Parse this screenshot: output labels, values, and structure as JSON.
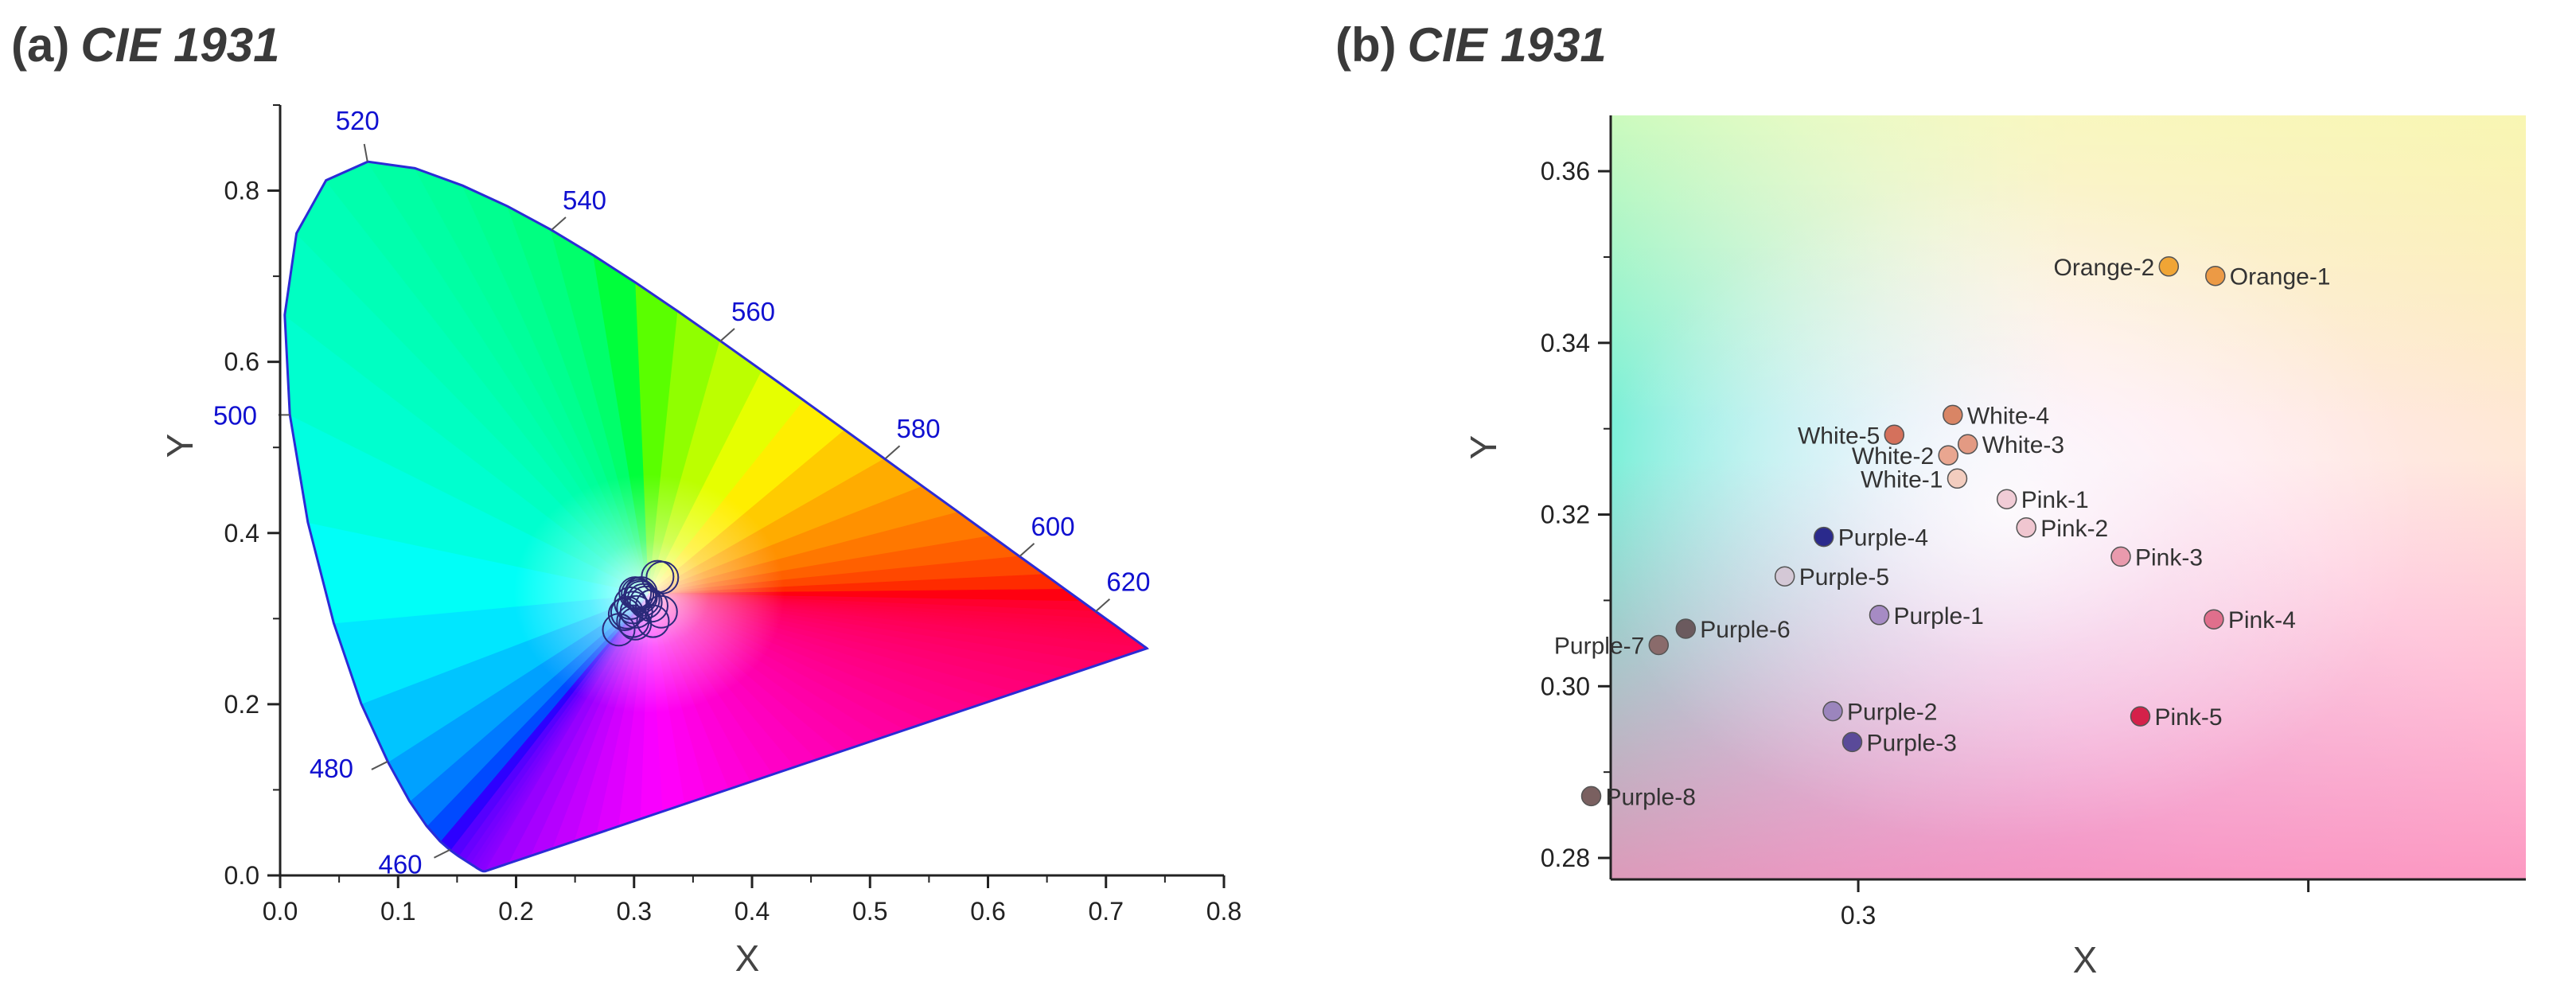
{
  "panels": {
    "a": {
      "letter": "(a)",
      "name": "CIE 1931"
    },
    "b": {
      "letter": "(b)",
      "name": "CIE 1931"
    }
  },
  "chart_data": [
    {
      "type": "scatter",
      "panel": "a",
      "title": "CIE 1931",
      "xlabel": "X",
      "ylabel": "Y",
      "xlim": [
        0.0,
        0.8
      ],
      "ylim": [
        0.0,
        0.9
      ],
      "xticks": [
        "0.0",
        "0.1",
        "0.2",
        "0.3",
        "0.4",
        "0.5",
        "0.6",
        "0.7",
        "0.8"
      ],
      "yticks": [
        "0.0",
        "0.2",
        "0.4",
        "0.6",
        "0.8"
      ],
      "spectral_locus_labels": [
        {
          "label": "460",
          "x": 0.144,
          "y": 0.03
        },
        {
          "label": "480",
          "x": 0.091,
          "y": 0.133
        },
        {
          "label": "500",
          "x": 0.008,
          "y": 0.538
        },
        {
          "label": "520",
          "x": 0.074,
          "y": 0.834
        },
        {
          "label": "540",
          "x": 0.23,
          "y": 0.754
        },
        {
          "label": "560",
          "x": 0.373,
          "y": 0.624
        },
        {
          "label": "580",
          "x": 0.513,
          "y": 0.487
        },
        {
          "label": "600",
          "x": 0.627,
          "y": 0.373
        },
        {
          "label": "620",
          "x": 0.691,
          "y": 0.308
        }
      ],
      "series": [
        {
          "values": [
            [
              0.32,
              0.349
            ],
            [
              0.324,
              0.348
            ],
            [
              0.306,
              0.33
            ],
            [
              0.303,
              0.329
            ],
            [
              0.305,
              0.327
            ],
            [
              0.306,
              0.325
            ],
            [
              0.301,
              0.33
            ],
            [
              0.308,
              0.322
            ],
            [
              0.31,
              0.319
            ],
            [
              0.315,
              0.315
            ],
            [
              0.323,
              0.308
            ],
            [
              0.316,
              0.297
            ],
            [
              0.297,
              0.318
            ],
            [
              0.299,
              0.313
            ],
            [
              0.302,
              0.308
            ],
            [
              0.294,
              0.307
            ],
            [
              0.292,
              0.305
            ],
            [
              0.299,
              0.297
            ],
            [
              0.301,
              0.294
            ],
            [
              0.287,
              0.287
            ]
          ]
        }
      ]
    },
    {
      "type": "scatter",
      "panel": "b",
      "title": "CIE 1931",
      "xlabel": "X",
      "ylabel": "Y",
      "xlim": [
        0.2835,
        0.3445
      ],
      "ylim": [
        0.2775,
        0.3665
      ],
      "xticks": [
        "0.3"
      ],
      "yticks": [
        "0.28",
        "0.30",
        "0.32",
        "0.34",
        "0.36"
      ],
      "points": [
        {
          "name": "Orange-1",
          "x": 0.3238,
          "y": 0.3478,
          "color": "#ec9a45"
        },
        {
          "name": "Orange-2",
          "x": 0.3207,
          "y": 0.3489,
          "color": "#f0a535"
        },
        {
          "name": "White-4",
          "x": 0.3063,
          "y": 0.3316,
          "color": "#d98565"
        },
        {
          "name": "White-3",
          "x": 0.3073,
          "y": 0.3282,
          "color": "#e39a83"
        },
        {
          "name": "White-5",
          "x": 0.3024,
          "y": 0.3293,
          "color": "#d4715c"
        },
        {
          "name": "White-2",
          "x": 0.306,
          "y": 0.3269,
          "color": "#e9a690"
        },
        {
          "name": "White-1",
          "x": 0.3066,
          "y": 0.3242,
          "color": "#f3cdbf"
        },
        {
          "name": "Pink-1",
          "x": 0.3099,
          "y": 0.3218,
          "color": "#f1ccd6"
        },
        {
          "name": "Pink-2",
          "x": 0.3112,
          "y": 0.3185,
          "color": "#f0c6d0"
        },
        {
          "name": "Pink-3",
          "x": 0.3175,
          "y": 0.3151,
          "color": "#e99aad"
        },
        {
          "name": "Pink-4",
          "x": 0.3237,
          "y": 0.3078,
          "color": "#e06f8c"
        },
        {
          "name": "Pink-5",
          "x": 0.3188,
          "y": 0.2965,
          "color": "#d5214a"
        },
        {
          "name": "Purple-4",
          "x": 0.2977,
          "y": 0.3174,
          "color": "#2a2a8c"
        },
        {
          "name": "Purple-5",
          "x": 0.2951,
          "y": 0.3128,
          "color": "#d4c8d6"
        },
        {
          "name": "Purple-1",
          "x": 0.3014,
          "y": 0.3083,
          "color": "#a68bc4"
        },
        {
          "name": "Purple-6",
          "x": 0.2885,
          "y": 0.3067,
          "color": "#6b5a5e"
        },
        {
          "name": "Purple-7",
          "x": 0.2867,
          "y": 0.3048,
          "color": "#8a6b6b"
        },
        {
          "name": "Purple-2",
          "x": 0.2983,
          "y": 0.2971,
          "color": "#9b85bd"
        },
        {
          "name": "Purple-3",
          "x": 0.2996,
          "y": 0.2935,
          "color": "#5a4a99"
        },
        {
          "name": "Purple-8",
          "x": 0.2822,
          "y": 0.2872,
          "color": "#7a6060"
        }
      ]
    }
  ]
}
